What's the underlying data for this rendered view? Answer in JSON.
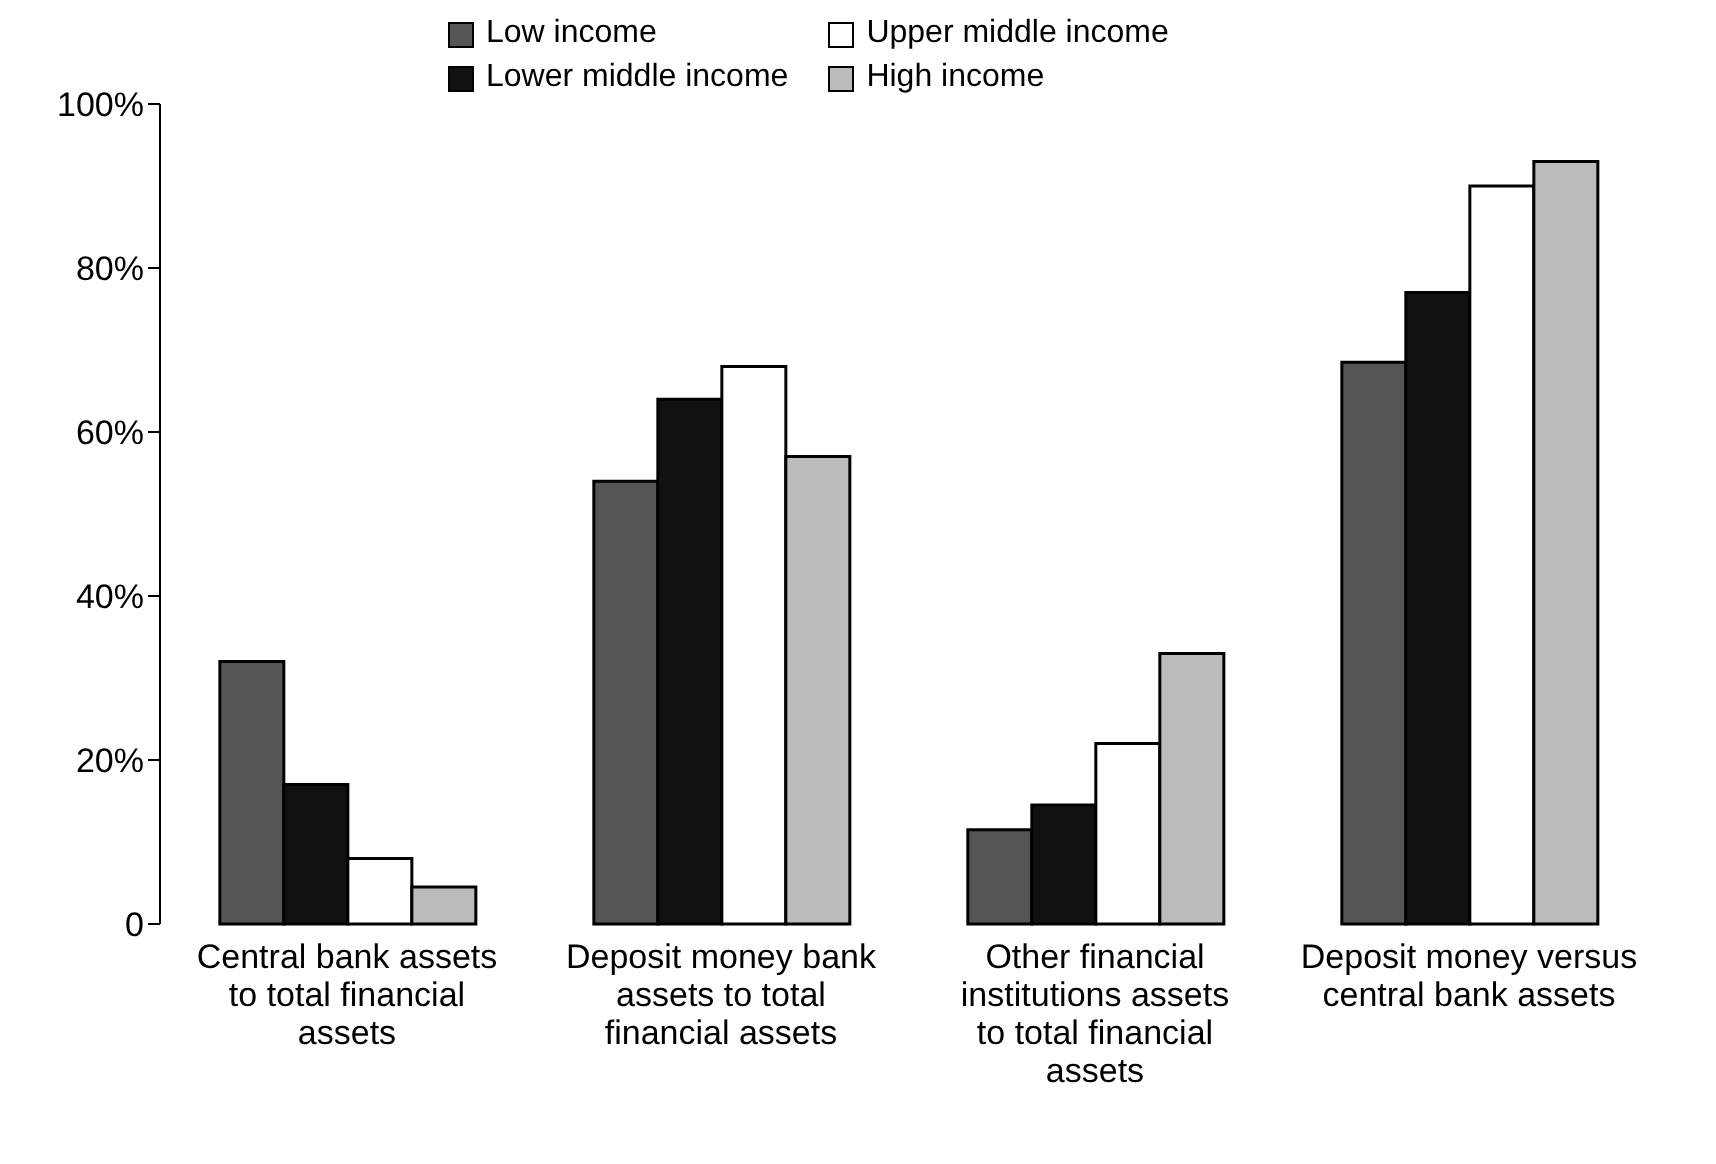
{
  "chart_data": {
    "type": "bar",
    "categories": [
      "Central bank assets to total financial assets",
      "Deposit money bank assets to total financial assets",
      "Other financial institutions assets to total financial assets",
      "Deposit money versus central bank assets"
    ],
    "series": [
      {
        "name": "Low income",
        "color": "#555555",
        "values": [
          32,
          54,
          11.5,
          68.5
        ]
      },
      {
        "name": "Lower middle income",
        "color": "#111111",
        "values": [
          17,
          64,
          14.5,
          77
        ]
      },
      {
        "name": "Upper middle income",
        "color": "#ffffff",
        "values": [
          8,
          68,
          22,
          90
        ]
      },
      {
        "name": "High income",
        "color": "#bbbbbb",
        "values": [
          4.5,
          57,
          33,
          93
        ]
      }
    ],
    "ylim": [
      0,
      100
    ],
    "yticks": [
      0,
      {
        "value": 20,
        "label": "20%"
      },
      {
        "value": 40,
        "label": "40%"
      },
      {
        "value": 60,
        "label": "60%"
      },
      {
        "value": 80,
        "label": "80%"
      },
      {
        "value": 100,
        "label": "100%"
      }
    ],
    "grid": false,
    "legend": "top"
  }
}
